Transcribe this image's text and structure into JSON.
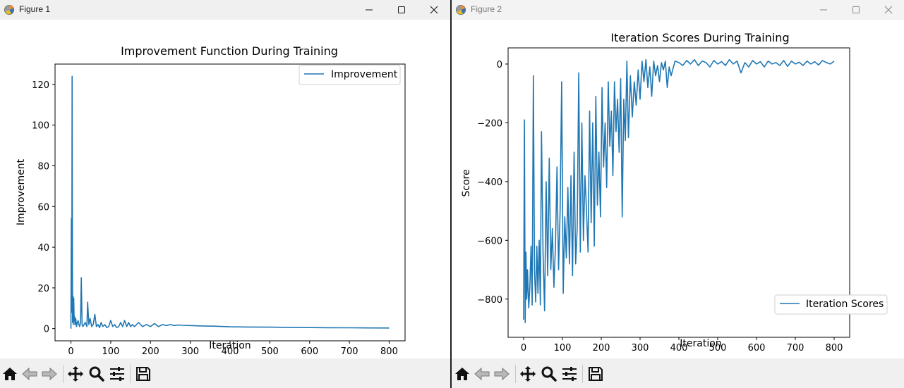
{
  "windows": [
    {
      "title": "Figure 1",
      "icon": "matplotlib-icon",
      "controls": [
        "minimize-icon",
        "maximize-icon",
        "close-icon"
      ],
      "toolbar": [
        "home-icon",
        "back-arrow-icon",
        "forward-arrow-icon",
        "pan-icon",
        "zoom-icon",
        "configure-subplots-icon",
        "save-icon"
      ]
    },
    {
      "title": "Figure 2",
      "icon": "matplotlib-icon",
      "controls": [
        "minimize-icon",
        "maximize-icon",
        "close-icon"
      ],
      "toolbar": [
        "home-icon",
        "back-arrow-icon",
        "forward-arrow-icon",
        "pan-icon",
        "zoom-icon",
        "configure-subplots-icon",
        "save-icon"
      ]
    }
  ],
  "line_color": "#1f77b4",
  "chart_data": [
    {
      "type": "line",
      "title": "Improvement Function During Training",
      "xlabel": "Iteration",
      "ylabel": "Improvement",
      "xlim": [
        -40,
        840
      ],
      "ylim": [
        -6,
        130
      ],
      "xticks": [
        0,
        100,
        200,
        300,
        400,
        500,
        600,
        700,
        800
      ],
      "yticks": [
        0,
        20,
        40,
        60,
        80,
        100,
        120
      ],
      "xtick_labels": [
        "0",
        "100",
        "200",
        "300",
        "400",
        "500",
        "600",
        "700",
        "800"
      ],
      "ytick_labels": [
        "0",
        "20",
        "40",
        "60",
        "80",
        "100",
        "120"
      ],
      "legend_location": "upper right",
      "grid": false,
      "series": [
        {
          "name": "Improvement",
          "x": [
            0,
            1,
            2,
            3,
            4,
            5,
            6,
            7,
            8,
            9,
            10,
            12,
            14,
            16,
            18,
            20,
            22,
            24,
            26,
            28,
            30,
            33,
            36,
            40,
            42,
            45,
            48,
            52,
            56,
            60,
            64,
            68,
            72,
            76,
            80,
            85,
            90,
            95,
            100,
            105,
            110,
            115,
            120,
            125,
            130,
            135,
            140,
            145,
            150,
            155,
            160,
            170,
            180,
            190,
            200,
            210,
            220,
            230,
            240,
            250,
            260,
            270,
            280,
            300,
            330,
            360,
            400,
            450,
            500,
            550,
            600,
            650,
            700,
            750,
            800
          ],
          "y": [
            0,
            54,
            8,
            124,
            3,
            16,
            2,
            15,
            4,
            6,
            2,
            5,
            1,
            3,
            4,
            2,
            1,
            3,
            25,
            2,
            1,
            2,
            3,
            1,
            13,
            2,
            5,
            1,
            2,
            7,
            1,
            2,
            0.5,
            3,
            1,
            2,
            0.5,
            1,
            4,
            1,
            2,
            0.5,
            1,
            3,
            1,
            4,
            1,
            3,
            1,
            2,
            1,
            3,
            1,
            2,
            1,
            2.5,
            1,
            2,
            1.5,
            2,
            1.5,
            1.8,
            1.6,
            1.5,
            1.3,
            1.2,
            0.9,
            0.8,
            0.7,
            0.6,
            0.5,
            0.45,
            0.4,
            0.35,
            0.3
          ]
        }
      ]
    },
    {
      "type": "line",
      "title": "Iteration Scores During Training",
      "xlabel": "Iteration",
      "ylabel": "Score",
      "xlim": [
        -40,
        840
      ],
      "ylim": [
        -930,
        55
      ],
      "xticks": [
        0,
        100,
        200,
        300,
        400,
        500,
        600,
        700,
        800
      ],
      "yticks": [
        0,
        -200,
        -400,
        -600,
        -800
      ],
      "xtick_labels": [
        "0",
        "100",
        "200",
        "300",
        "400",
        "500",
        "600",
        "700",
        "800"
      ],
      "ytick_labels": [
        "0",
        "−200",
        "−400",
        "−600",
        "−800"
      ],
      "legend_location": "lower right",
      "grid": false,
      "series": [
        {
          "name": "Iteration Scores",
          "x": [
            0,
            2,
            4,
            6,
            8,
            10,
            13,
            16,
            19,
            22,
            25,
            28,
            31,
            34,
            37,
            40,
            43,
            46,
            50,
            54,
            58,
            62,
            66,
            70,
            74,
            78,
            82,
            86,
            90,
            94,
            98,
            102,
            106,
            110,
            114,
            118,
            122,
            126,
            130,
            134,
            138,
            142,
            146,
            150,
            154,
            158,
            162,
            166,
            170,
            174,
            178,
            182,
            186,
            190,
            194,
            198,
            202,
            206,
            210,
            214,
            218,
            222,
            226,
            230,
            234,
            238,
            242,
            246,
            250,
            254,
            258,
            262,
            266,
            270,
            275,
            280,
            285,
            290,
            295,
            300,
            305,
            310,
            315,
            320,
            325,
            330,
            335,
            340,
            345,
            350,
            355,
            360,
            365,
            370,
            375,
            380,
            390,
            400,
            410,
            420,
            430,
            440,
            450,
            460,
            470,
            480,
            490,
            500,
            510,
            520,
            530,
            540,
            550,
            560,
            570,
            580,
            590,
            600,
            610,
            620,
            630,
            640,
            650,
            660,
            670,
            680,
            690,
            700,
            710,
            720,
            730,
            740,
            750,
            760,
            770,
            780,
            790,
            800
          ],
          "y": [
            -870,
            -190,
            -880,
            -640,
            -800,
            -700,
            -830,
            -760,
            -620,
            -820,
            -40,
            -700,
            -810,
            -620,
            -780,
            -600,
            -820,
            -230,
            -640,
            -840,
            -400,
            -720,
            -320,
            -700,
            -560,
            -760,
            -620,
            -350,
            -700,
            -500,
            -60,
            -780,
            -520,
            -660,
            -420,
            -680,
            -380,
            -720,
            -300,
            -680,
            -560,
            -30,
            -640,
            -200,
            -600,
            -380,
            -500,
            -640,
            -160,
            -540,
            -200,
            -620,
            -110,
            -480,
            -300,
            -520,
            -80,
            -350,
            -200,
            -420,
            -60,
            -280,
            -160,
            -380,
            -60,
            -230,
            -120,
            -300,
            -50,
            -520,
            -120,
            -260,
            10,
            -250,
            -40,
            -180,
            -60,
            -140,
            -20,
            -120,
            10,
            -60,
            15,
            -80,
            -10,
            -110,
            10,
            -40,
            -5,
            -60,
            5,
            -20,
            10,
            -80,
            -10,
            -40,
            10,
            5,
            -5,
            12,
            0,
            15,
            -5,
            10,
            5,
            -10,
            12,
            0,
            8,
            -5,
            15,
            0,
            10,
            -30,
            5,
            -10,
            12,
            0,
            8,
            -10,
            10,
            0,
            5,
            -5,
            12,
            -8,
            10,
            0,
            6,
            -5,
            10,
            0,
            8,
            -3,
            12,
            5,
            0,
            10
          ]
        }
      ]
    }
  ]
}
